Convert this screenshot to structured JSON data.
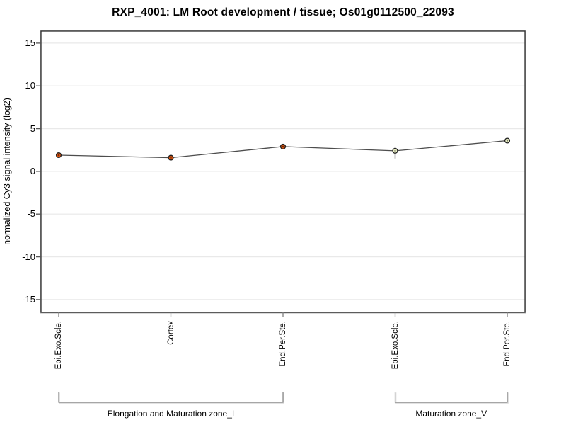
{
  "chart_data": {
    "type": "line",
    "title": "RXP_4001: LM Root development / tissue; Os01g0112500_22093",
    "ylabel": "normalized Cy3 signal intensity (log2)",
    "xlabel": "",
    "ylim": [
      -16.5,
      16.4
    ],
    "yticks": [
      15,
      10,
      5,
      0,
      -5,
      -10,
      -15
    ],
    "grid": true,
    "legend": "none",
    "categories": [
      "Epi.Exo.Scle.",
      "Cortex",
      "End.Per.Ste.",
      "Epi.Exo.Scle.",
      "End.Per.Ste."
    ],
    "values": [
      1.9,
      1.6,
      2.9,
      2.4,
      3.6
    ],
    "error_bars": [
      null,
      null,
      null,
      {
        "low": 1.5,
        "high": 2.9
      },
      null
    ],
    "marker_fills": [
      "#d4500e",
      "#d4500e",
      "#d4500e",
      "#e6ebc0",
      "#e6ebc0"
    ],
    "groups": [
      {
        "label": "Elongation and Maturation zone_I",
        "from": 0,
        "to": 2
      },
      {
        "label": "Maturation zone_V",
        "from": 3,
        "to": 4
      }
    ],
    "colors": {
      "background": "#ffffff",
      "grid": "#e9e9e9",
      "box": "#2e2e2e",
      "box_shadow": "#b3b3b3",
      "series_line": "#4d4d4d",
      "y_tick": "#555555",
      "x_tick": "#808080",
      "bracket": "#828282",
      "bracket_shadow": "#d9d9d9",
      "marker_edge": "#1f1f1f",
      "marker_center_dot": "rgba(0,0,0,0.5)",
      "error_bar": "#1a1a1a"
    }
  }
}
